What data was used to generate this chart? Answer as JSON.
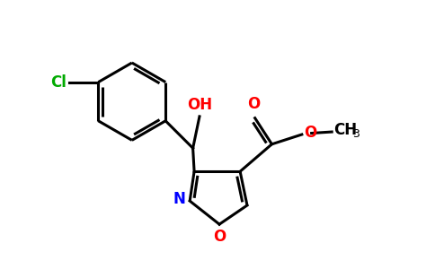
{
  "background_color": "#ffffff",
  "bond_color": "#000000",
  "cl_color": "#00aa00",
  "n_color": "#0000ff",
  "o_color": "#ff0000",
  "lw": 2.2,
  "figsize": [
    4.84,
    3.0
  ],
  "dpi": 100,
  "xlim": [
    0,
    9.68
  ],
  "ylim": [
    0,
    6.0
  ]
}
